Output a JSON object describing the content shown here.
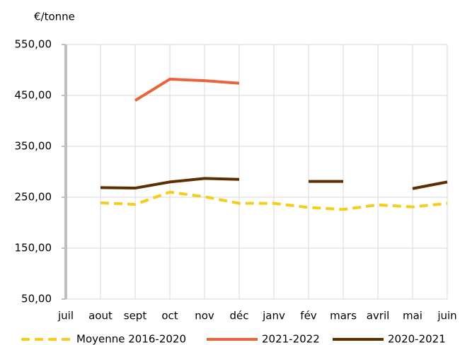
{
  "chart_data": {
    "type": "line",
    "y_axis_label": "€/tonne",
    "categories": [
      "juil",
      "aout",
      "sept",
      "oct",
      "nov",
      "déc",
      "janv",
      "fév",
      "mars",
      "avril",
      "mai",
      "juin"
    ],
    "series": [
      {
        "name": "Moyenne 2016-2020",
        "color": "#f5cd1e",
        "dashed": true,
        "values": [
          null,
          239,
          236,
          260,
          251,
          238,
          238,
          230,
          226,
          235,
          231,
          238
        ]
      },
      {
        "name": "2021-2022",
        "color": "#e8643c",
        "values": [
          null,
          null,
          440,
          482,
          479,
          474,
          null,
          null,
          null,
          null,
          null,
          null
        ]
      },
      {
        "name": "2020-2021",
        "color": "#5c2e00",
        "values": [
          null,
          269,
          268,
          280,
          287,
          285,
          null,
          281,
          281,
          null,
          267,
          280
        ]
      }
    ],
    "ylim": [
      50,
      550
    ],
    "yticks": [
      {
        "value": 50,
        "label": "50,00"
      },
      {
        "value": 150,
        "label": "150,00"
      },
      {
        "value": 250,
        "label": "250,00"
      },
      {
        "value": 350,
        "label": "350,00"
      },
      {
        "value": 450,
        "label": "450,00"
      },
      {
        "value": 550,
        "label": "550,00"
      }
    ],
    "grid": true,
    "legend": "bottom"
  }
}
